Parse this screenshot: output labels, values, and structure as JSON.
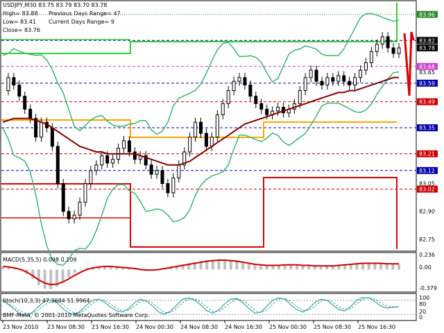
{
  "header": {
    "symbol_line": "USDJPY,M30  83.75 83.79 83.70 83.78",
    "high": "High= 83.88",
    "low": "Low= 83.41",
    "close": "Close= 83.76",
    "prev_range": "Previous Days Range= 47",
    "curr_range": "Current Days Range= 9"
  },
  "copyright": "BMF-Meta, © 2001-2010 MetaQuotes Software Corp.",
  "macd_label": "MACD(5,35,5) 0.098 0.109",
  "stoch_label": "Stoch(10,3,3) 47.3684 51.9964",
  "price_axis": {
    "ticks": [
      "83.65",
      "83.05",
      "82.90",
      "82.75"
    ],
    "tags": [
      {
        "text": "83.96",
        "color": "#2e8b2e"
      },
      {
        "text": "83.82",
        "color": "#000000"
      },
      {
        "text": "83.78",
        "color": "#000000"
      },
      {
        "text": "83.68",
        "color": "#cc44cc"
      },
      {
        "text": "83.59",
        "color": "#0000aa"
      },
      {
        "text": "83.49",
        "color": "#cc0000"
      },
      {
        "text": "83.35",
        "color": "#0000aa"
      },
      {
        "text": "83.21",
        "color": "#cc0000"
      },
      {
        "text": "83.12",
        "color": "#0000aa"
      },
      {
        "text": "83.02",
        "color": "#cc0000"
      }
    ]
  },
  "macd_axis": [
    "0.236",
    "0.00",
    "-0.379"
  ],
  "stoch_axis": [
    "100",
    "80",
    "20",
    "0"
  ],
  "time_axis": [
    "23 Nov 2010",
    "23 Nov 08:30",
    "23 Nov 16:30",
    "24 Nov 00:30",
    "24 Nov 08:30",
    "24 Nov 16:30",
    "25 Nov 00:30",
    "25 Nov 08:30",
    "25 Nov 16:30"
  ],
  "colors": {
    "candle": "#000000",
    "bollinger": "#3cb371",
    "ma": "#800000",
    "macd_hist": "#c0c0c0",
    "macd_signal": "#cc0000",
    "stoch_main": "#3aa0a0",
    "green_level": "#33cc33",
    "orange_level": "#ffa500",
    "red_level": "#dd0000",
    "blue_level": "#0000aa"
  },
  "chart_data": [
    {
      "type": "line",
      "title": "USDJPY,M30",
      "ylim": [
        82.69,
        84.03
      ],
      "levels": [
        {
          "value": 83.96,
          "color": "#2e8b2e",
          "style": "dotted"
        },
        {
          "value": 83.82,
          "color": "#0000aa",
          "style": "dashed"
        },
        {
          "value": 83.68,
          "color": "#cc44cc",
          "style": "dashed"
        },
        {
          "value": 83.59,
          "color": "#0000aa",
          "style": "dashed"
        },
        {
          "value": 83.49,
          "color": "#cc0000",
          "style": "dashed"
        },
        {
          "value": 83.35,
          "color": "#0000aa",
          "style": "dashed"
        },
        {
          "value": 83.21,
          "color": "#cc0000",
          "style": "dashed"
        },
        {
          "value": 83.12,
          "color": "#0000aa",
          "style": "dashed"
        },
        {
          "value": 83.02,
          "color": "#cc0000",
          "style": "dashed"
        }
      ],
      "series": [
        {
          "key": "close",
          "values": [
            83.55,
            83.62,
            83.58,
            83.52,
            83.45,
            83.4,
            83.3,
            83.38,
            83.35,
            83.25,
            83.05,
            82.9,
            82.86,
            82.88,
            82.95,
            83.05,
            83.12,
            83.15,
            83.2,
            83.16,
            83.18,
            83.24,
            83.28,
            83.22,
            83.18,
            83.2,
            83.15,
            83.1,
            83.12,
            83.05,
            83.0,
            83.08,
            83.15,
            83.22,
            83.3,
            83.38,
            83.32,
            83.25,
            83.3,
            83.42,
            83.48,
            83.55,
            83.6,
            83.62,
            83.58,
            83.52,
            83.48,
            83.45,
            83.42,
            83.44,
            83.46,
            83.43,
            83.45,
            83.48,
            83.55,
            83.62,
            83.66,
            83.6,
            83.58,
            83.62,
            83.6,
            83.63,
            83.6,
            83.58,
            83.62,
            83.66,
            83.7,
            83.76,
            83.8,
            83.84,
            83.78,
            83.75,
            83.78
          ]
        },
        {
          "key": "ma",
          "values": [
            83.38,
            83.39,
            83.4,
            83.4,
            83.4,
            83.4,
            83.39,
            83.38,
            83.37,
            83.35,
            83.33,
            83.31,
            83.29,
            83.27,
            83.25,
            83.24,
            83.23,
            83.22,
            83.22,
            83.21,
            83.21,
            83.21,
            83.21,
            83.21,
            83.21,
            83.2,
            83.19,
            83.18,
            83.17,
            83.16,
            83.15,
            83.15,
            83.15,
            83.16,
            83.17,
            83.19,
            83.21,
            83.23,
            83.25,
            83.27,
            83.29,
            83.31,
            83.33,
            83.35,
            83.37,
            83.38,
            83.39,
            83.4,
            83.41,
            83.42,
            83.43,
            83.44,
            83.45,
            83.46,
            83.47,
            83.48,
            83.49,
            83.5,
            83.51,
            83.52,
            83.53,
            83.54,
            83.54,
            83.55,
            83.55,
            83.56,
            83.57,
            83.58,
            83.59,
            83.6,
            83.61,
            83.62,
            83.62
          ]
        }
      ]
    },
    {
      "type": "bar",
      "title": "MACD(5,35,5)",
      "ylim": [
        -0.42,
        0.3
      ],
      "series": [
        {
          "key": "histogram",
          "values": [
            0.05,
            0.04,
            0.02,
            0.0,
            -0.08,
            -0.18,
            -0.3,
            -0.37,
            -0.38,
            -0.33,
            -0.25,
            -0.15,
            -0.06,
            0.0,
            0.03,
            0.05,
            0.06,
            0.06,
            0.05,
            0.04,
            0.03,
            0.02,
            0.0,
            -0.02,
            -0.03,
            -0.02,
            0.0,
            0.02,
            0.04,
            0.07,
            0.1,
            0.12,
            0.14,
            0.16,
            0.18,
            0.19,
            0.2,
            0.19,
            0.17,
            0.15,
            0.12,
            0.1,
            0.08,
            0.07,
            0.07,
            0.08,
            0.09,
            0.1,
            0.1,
            0.09,
            0.08,
            0.07,
            0.06,
            0.05,
            0.06,
            0.07,
            0.08,
            0.09,
            0.1,
            0.11,
            0.12,
            0.13,
            0.13,
            0.12,
            0.11,
            0.1,
            0.1
          ]
        },
        {
          "key": "signal",
          "values": [
            0.06,
            0.05,
            0.03,
            0.0,
            -0.05,
            -0.12,
            -0.2,
            -0.26,
            -0.29,
            -0.28,
            -0.24,
            -0.18,
            -0.11,
            -0.05,
            0.0,
            0.03,
            0.05,
            0.06,
            0.06,
            0.05,
            0.04,
            0.03,
            0.02,
            0.0,
            -0.01,
            -0.01,
            0.0,
            0.02,
            0.04,
            0.06,
            0.08,
            0.1,
            0.12,
            0.14,
            0.16,
            0.17,
            0.18,
            0.18,
            0.17,
            0.16,
            0.14,
            0.12,
            0.1,
            0.09,
            0.08,
            0.08,
            0.08,
            0.09,
            0.09,
            0.09,
            0.08,
            0.08,
            0.07,
            0.07,
            0.07,
            0.07,
            0.08,
            0.09,
            0.1,
            0.11,
            0.12,
            0.12,
            0.12,
            0.12,
            0.11,
            0.11,
            0.11
          ]
        }
      ]
    },
    {
      "type": "line",
      "title": "Stoch(10,3,3)",
      "ylim": [
        0,
        100
      ],
      "series": [
        {
          "key": "main",
          "values": [
            80,
            60,
            40,
            20,
            15,
            30,
            55,
            75,
            82,
            70,
            45,
            25,
            20,
            35,
            60,
            80,
            85,
            70,
            50,
            35,
            30,
            45,
            70,
            85,
            75,
            55,
            30,
            20,
            35,
            60,
            85,
            90,
            80,
            60,
            35,
            25,
            40,
            65,
            85,
            88,
            70,
            45,
            25,
            30,
            55,
            80,
            90,
            85,
            60,
            40,
            30,
            45,
            70,
            85,
            80,
            60,
            40,
            35,
            55,
            80,
            92,
            90,
            75,
            55,
            47,
            50,
            52
          ]
        },
        {
          "key": "signal",
          "values": [
            75,
            65,
            50,
            32,
            22,
            25,
            40,
            60,
            75,
            78,
            62,
            40,
            25,
            28,
            45,
            68,
            82,
            80,
            62,
            45,
            35,
            38,
            55,
            75,
            80,
            68,
            45,
            28,
            28,
            45,
            70,
            85,
            87,
            72,
            50,
            32,
            32,
            50,
            72,
            85,
            80,
            60,
            38,
            28,
            40,
            65,
            85,
            88,
            75,
            52,
            38,
            38,
            55,
            75,
            82,
            72,
            52,
            40,
            45,
            65,
            85,
            90,
            85,
            68,
            55,
            52,
            52
          ]
        }
      ]
    }
  ]
}
